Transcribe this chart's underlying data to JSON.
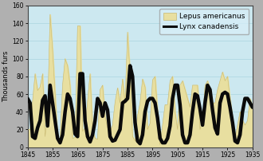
{
  "years": [
    1845,
    1846,
    1847,
    1848,
    1849,
    1850,
    1851,
    1852,
    1853,
    1854,
    1855,
    1856,
    1857,
    1858,
    1859,
    1860,
    1861,
    1862,
    1863,
    1864,
    1865,
    1866,
    1867,
    1868,
    1869,
    1870,
    1871,
    1872,
    1873,
    1874,
    1875,
    1876,
    1877,
    1878,
    1879,
    1880,
    1881,
    1882,
    1883,
    1884,
    1885,
    1886,
    1887,
    1888,
    1889,
    1890,
    1891,
    1892,
    1893,
    1894,
    1895,
    1896,
    1897,
    1898,
    1899,
    1900,
    1901,
    1902,
    1903,
    1904,
    1905,
    1906,
    1907,
    1908,
    1909,
    1910,
    1911,
    1912,
    1913,
    1914,
    1915,
    1916,
    1917,
    1918,
    1919,
    1920,
    1921,
    1922,
    1923,
    1924,
    1925,
    1926,
    1927,
    1928,
    1929,
    1930,
    1931,
    1932,
    1933,
    1934,
    1935
  ],
  "hare": [
    20,
    20,
    52,
    83,
    64,
    68,
    83,
    12,
    36,
    150,
    110,
    60,
    7,
    10,
    70,
    100,
    92,
    70,
    10,
    11,
    137,
    137,
    18,
    22,
    52,
    83,
    18,
    10,
    9,
    65,
    70,
    34,
    22,
    18,
    25,
    51,
    67,
    50,
    77,
    50,
    130,
    82,
    12,
    7,
    36,
    50,
    77,
    68,
    20,
    27,
    76,
    80,
    40,
    3,
    25,
    48,
    48,
    75,
    80,
    40,
    20,
    70,
    75,
    65,
    55,
    45,
    70,
    70,
    70,
    20,
    30,
    70,
    75,
    65,
    50,
    50,
    65,
    75,
    85,
    75,
    80,
    55,
    30,
    10,
    25,
    40,
    30,
    25,
    30,
    55,
    45
  ],
  "lynx": [
    55,
    50,
    12,
    10,
    22,
    30,
    53,
    58,
    24,
    70,
    50,
    30,
    10,
    5,
    14,
    40,
    60,
    55,
    40,
    15,
    12,
    83,
    83,
    30,
    12,
    6,
    14,
    30,
    55,
    50,
    35,
    50,
    42,
    12,
    7,
    8,
    14,
    20,
    50,
    52,
    55,
    92,
    80,
    28,
    7,
    4,
    14,
    40,
    52,
    55,
    55,
    50,
    33,
    10,
    5,
    5,
    10,
    24,
    55,
    70,
    70,
    48,
    14,
    5,
    5,
    14,
    40,
    60,
    58,
    43,
    25,
    50,
    70,
    65,
    42,
    22,
    15,
    50,
    60,
    62,
    60,
    45,
    28,
    7,
    5,
    14,
    40,
    55,
    55,
    50,
    45
  ],
  "hare_color": "#e8dfa0",
  "hare_edge_color": "#c8b870",
  "lynx_color": "#0a0a0a",
  "bg_color": "#cce8f0",
  "outer_bg": "#b0b0b0",
  "ylabel": "Thousands furs",
  "ylim": [
    0,
    160
  ],
  "yticks": [
    0,
    20,
    40,
    60,
    80,
    100,
    120,
    140,
    160
  ],
  "xlim": [
    1845,
    1935
  ],
  "xticks": [
    1845,
    1855,
    1865,
    1875,
    1885,
    1895,
    1905,
    1915,
    1925,
    1935
  ],
  "legend_hare": "Lepus americanus",
  "legend_lynx": "Lynx canadensis",
  "lynx_linewidth": 3.2,
  "ylabel_fontsize": 6.0,
  "tick_fontsize": 5.5,
  "legend_fontsize": 6.5
}
